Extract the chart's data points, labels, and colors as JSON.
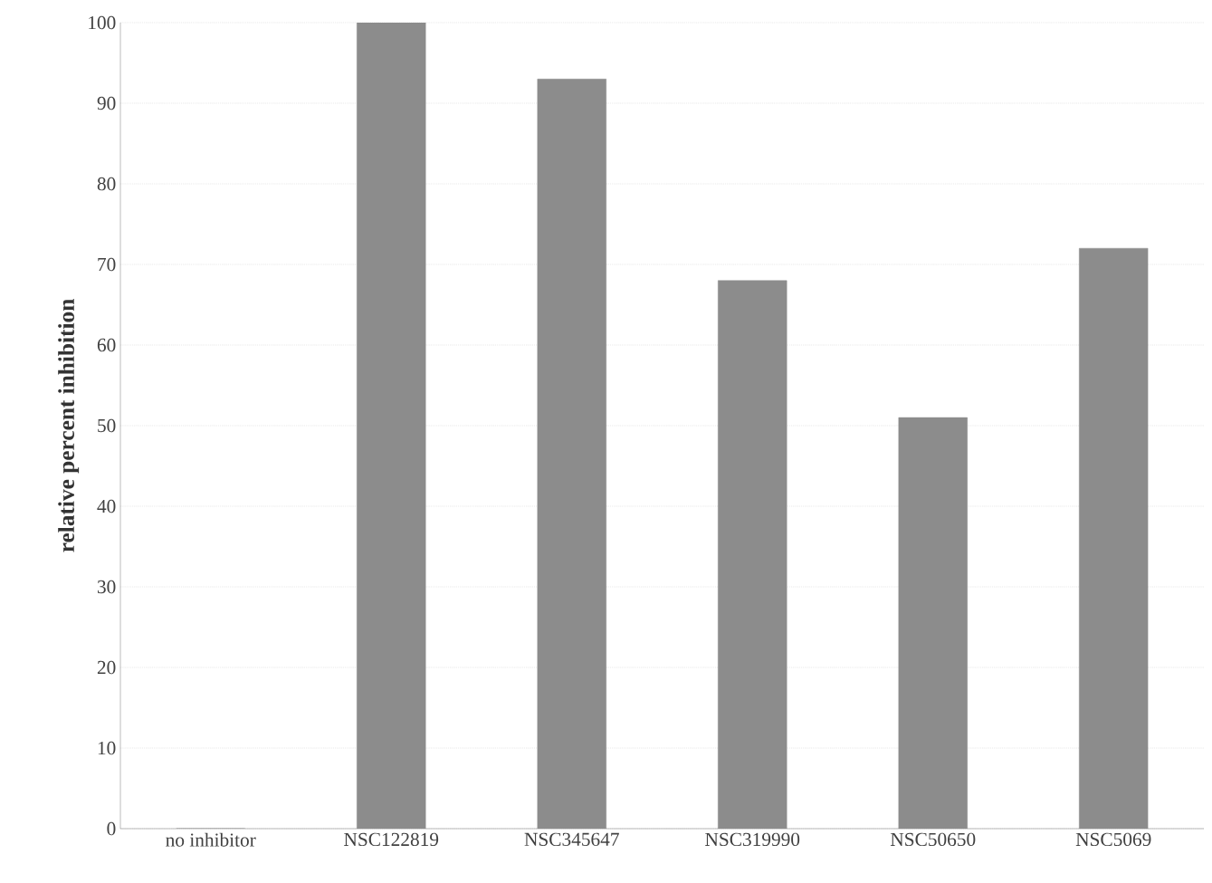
{
  "chart_data": {
    "type": "bar",
    "ylabel": "relative percent inhibition",
    "categories": [
      "no inhibitor",
      "NSC122819",
      "NSC345647",
      "NSC319990",
      "NSC50650",
      "NSC5069"
    ],
    "values": [
      0,
      100,
      93,
      68,
      51,
      72
    ],
    "color": "#8c8c8c",
    "ylim": [
      0,
      100
    ],
    "yticks": [
      0,
      10,
      20,
      30,
      40,
      50,
      60,
      70,
      80,
      90,
      100
    ],
    "grid": "y"
  }
}
